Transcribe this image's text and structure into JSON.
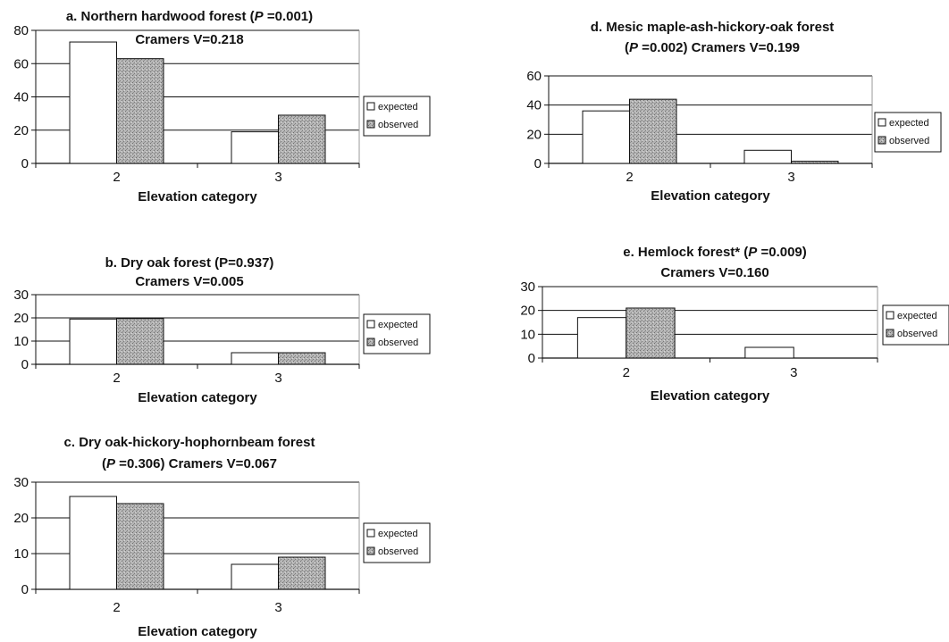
{
  "figure": "forest-elevation-panels",
  "colors": {
    "expected": "#ffffff",
    "observed": "#a9a9a9",
    "axis": "#111111"
  },
  "chart_data": [
    {
      "id": "a",
      "type": "bar",
      "title_lines": [
        [
          {
            "t": "a. Northern hardwood forest ("
          },
          {
            "t": "P",
            "i": true
          },
          {
            "t": " =0.001)"
          }
        ],
        [
          {
            "t": "Cramers V=0.218"
          }
        ]
      ],
      "categories": [
        "2",
        "3"
      ],
      "series": [
        {
          "name": "expected",
          "values": [
            73,
            19
          ]
        },
        {
          "name": "observed",
          "values": [
            63,
            29
          ]
        }
      ],
      "xlabel": "Elevation category",
      "ylabel": "",
      "ylim": [
        0,
        80
      ],
      "yticks": [
        0,
        20,
        40,
        60,
        80
      ],
      "grid": true,
      "legend": "right"
    },
    {
      "id": "b",
      "type": "bar",
      "title_lines": [
        [
          {
            "t": "b. Dry oak forest ("
          },
          {
            "t": "P",
            "i": false
          },
          {
            "t": "=0.937)"
          }
        ],
        [
          {
            "t": "Cramers V=0.005"
          }
        ]
      ],
      "categories": [
        "2",
        "3"
      ],
      "series": [
        {
          "name": "expected",
          "values": [
            19.5,
            5
          ]
        },
        {
          "name": "observed",
          "values": [
            19.7,
            5
          ]
        }
      ],
      "xlabel": "Elevation category",
      "ylabel": "",
      "ylim": [
        0,
        30
      ],
      "yticks": [
        0,
        10,
        20,
        30
      ],
      "grid": true,
      "legend": "right"
    },
    {
      "id": "c",
      "type": "bar",
      "title_lines": [
        [
          {
            "t": "c. Dry oak-hickory-hophornbeam forest"
          }
        ],
        [
          {
            "t": "("
          },
          {
            "t": "P",
            "i": true
          },
          {
            "t": " =0.306) Cramers V=0.067"
          }
        ]
      ],
      "categories": [
        "2",
        "3"
      ],
      "series": [
        {
          "name": "expected",
          "values": [
            26,
            7
          ]
        },
        {
          "name": "observed",
          "values": [
            24,
            9
          ]
        }
      ],
      "xlabel": "Elevation category",
      "ylabel": "",
      "ylim": [
        0,
        30
      ],
      "yticks": [
        0,
        10,
        20,
        30
      ],
      "grid": true,
      "legend": "right"
    },
    {
      "id": "d",
      "type": "bar",
      "title_lines": [
        [
          {
            "t": "d. Mesic maple-ash-hickory-oak forest"
          }
        ],
        [
          {
            "t": "("
          },
          {
            "t": "P",
            "i": true
          },
          {
            "t": " =0.002) Cramers V=0.199"
          }
        ]
      ],
      "categories": [
        "2",
        "3"
      ],
      "series": [
        {
          "name": "expected",
          "values": [
            36,
            9
          ]
        },
        {
          "name": "observed",
          "values": [
            44,
            1.5
          ]
        }
      ],
      "xlabel": "Elevation category",
      "ylabel": "",
      "ylim": [
        0,
        60
      ],
      "yticks": [
        0,
        20,
        40,
        60
      ],
      "grid": true,
      "legend": "right"
    },
    {
      "id": "e",
      "type": "bar",
      "title_lines": [
        [
          {
            "t": "e. Hemlock  forest* ("
          },
          {
            "t": "P",
            "i": true
          },
          {
            "t": " =0.009)"
          }
        ],
        [
          {
            "t": "Cramers V=0.160"
          }
        ]
      ],
      "categories": [
        "2",
        "3"
      ],
      "series": [
        {
          "name": "expected",
          "values": [
            17,
            4.5
          ]
        },
        {
          "name": "observed",
          "values": [
            21,
            0
          ]
        }
      ],
      "xlabel": "Elevation category",
      "ylabel": "",
      "ylim": [
        0,
        30
      ],
      "yticks": [
        0,
        10,
        20,
        30
      ],
      "grid": true,
      "legend": "right"
    }
  ]
}
